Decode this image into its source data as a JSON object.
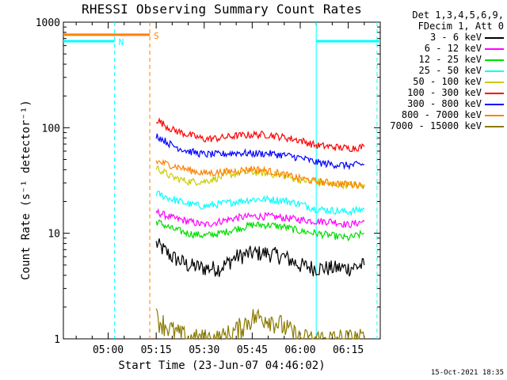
{
  "chart_data": {
    "type": "line",
    "title": "RHESSI Observing Summary Count Rates",
    "xlabel": "Start Time (23-Jun-07 04:46:02)",
    "ylabel": "Count Rate (s⁻¹ detector⁻¹)",
    "y_scale": "log",
    "ylim": [
      1,
      1000
    ],
    "xlim": [
      "04:46",
      "06:25"
    ],
    "x_ticks": [
      "05:00",
      "05:15",
      "05:30",
      "05:45",
      "06:00",
      "06:15"
    ],
    "y_ticks": [
      "1",
      "10",
      "100",
      "1000"
    ],
    "grid": false,
    "legend_position": "right",
    "legend_header": [
      "Det 1,3,4,5,6,9,",
      "FDecim 1, Att 0"
    ],
    "x": [
      "05:15",
      "05:20",
      "05:25",
      "05:30",
      "05:35",
      "05:40",
      "05:45",
      "05:50",
      "05:55",
      "06:00",
      "06:05",
      "06:10",
      "06:15",
      "06:20"
    ],
    "series": [
      {
        "name": "3 - 6 keV",
        "color": "#000000",
        "values": [
          8,
          6,
          5,
          4.7,
          4.7,
          6,
          6.5,
          6.5,
          6,
          5,
          4.7,
          4.7,
          4.7,
          5
        ]
      },
      {
        "name": "6 - 12 keV",
        "color": "#ff00ff",
        "values": [
          16,
          14,
          13,
          12,
          13,
          14,
          14.5,
          14.5,
          14,
          13.5,
          13,
          13,
          12,
          13
        ]
      },
      {
        "name": "12 - 25 keV",
        "color": "#00dd00",
        "values": [
          13,
          11,
          10,
          9.5,
          10,
          11,
          12,
          12,
          11.5,
          10.5,
          10,
          9.5,
          9,
          10
        ]
      },
      {
        "name": "25 - 50 keV",
        "color": "#00ffff",
        "values": [
          24,
          21,
          19,
          18,
          19,
          20,
          21,
          21,
          20.5,
          19,
          17,
          16.5,
          16,
          17
        ]
      },
      {
        "name": "50 - 100 keV",
        "color": "#cccc00",
        "values": [
          42,
          34,
          31,
          31,
          34,
          37,
          38,
          37,
          35,
          32,
          31,
          29,
          29,
          28
        ]
      },
      {
        "name": "100 - 300 keV",
        "color": "#ff0000",
        "values": [
          120,
          96,
          86,
          78,
          80,
          84,
          86,
          86,
          81,
          76,
          68,
          66,
          64,
          66
        ]
      },
      {
        "name": "300 - 800 keV",
        "color": "#0000ff",
        "values": [
          85,
          68,
          60,
          56,
          56,
          58,
          57,
          57,
          55,
          52,
          47,
          45,
          44,
          45
        ]
      },
      {
        "name": "800 - 7000 keV",
        "color": "#ff8000",
        "values": [
          48,
          44,
          40,
          37,
          38,
          39,
          41,
          39,
          36,
          33,
          31,
          30,
          29,
          29
        ]
      },
      {
        "name": "7000 - 15000 keV",
        "color": "#8b7a00",
        "values": [
          1.6,
          1.2,
          1,
          1,
          1,
          1.2,
          1.6,
          1.6,
          1.3,
          1,
          1,
          1,
          1,
          1
        ]
      }
    ],
    "annotations": [
      {
        "label": "S",
        "color": "#ff8000",
        "from": "04:46",
        "to": "05:13",
        "y": 760
      },
      {
        "label": "N",
        "color": "#00ffff",
        "from": "04:46",
        "to": "05:02",
        "y": 660
      },
      {
        "label": "",
        "color": "#00ffff",
        "from": "06:05",
        "to": "06:25",
        "y": 660
      }
    ],
    "vertical_markers": [
      {
        "time": "05:02",
        "color": "#00ffff",
        "style": "dashed"
      },
      {
        "time": "05:13",
        "color": "#ff8000",
        "style": "dashed"
      },
      {
        "time": "06:05",
        "color": "#00ffff",
        "style": "solid"
      },
      {
        "time": "06:24",
        "color": "#00ffff",
        "style": "dashed"
      }
    ]
  },
  "timestamp": "15-Oct-2021 18:35"
}
